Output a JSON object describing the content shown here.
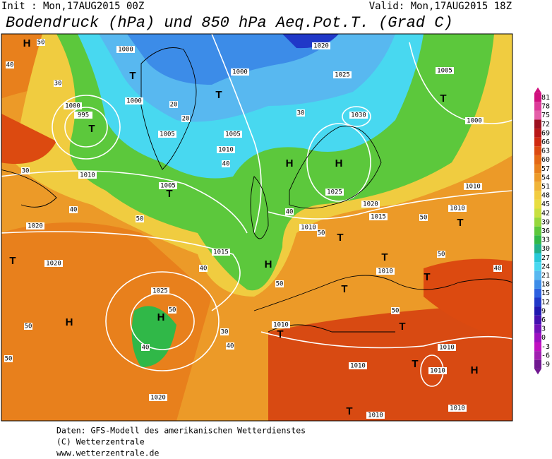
{
  "header": {
    "init": "Init : Mon,17AUG2015 00Z",
    "valid": "Valid: Mon,17AUG2015 18Z",
    "title": "Bodendruck (hPa) und 850 hPa Aeq.Pot.T. (Grad C)"
  },
  "colorbar": {
    "ticks": [
      81,
      78,
      75,
      72,
      69,
      66,
      63,
      60,
      57,
      54,
      51,
      48,
      45,
      42,
      39,
      36,
      33,
      30,
      27,
      24,
      21,
      18,
      15,
      12,
      9,
      6,
      3,
      0,
      -3,
      -6,
      -9
    ],
    "colors": [
      "#d0107e",
      "#dc3a98",
      "#e45ea8",
      "#9c1020",
      "#b81818",
      "#d02a10",
      "#dc4a10",
      "#e46814",
      "#e8801c",
      "#ec9a28",
      "#f0b438",
      "#f2cc40",
      "#e8de40",
      "#c8e040",
      "#96d83c",
      "#5cc83c",
      "#30b848",
      "#20b088",
      "#28c8d8",
      "#48d8f0",
      "#58b8f0",
      "#3c8ce8",
      "#2c60e0",
      "#2038c8",
      "#2018b0",
      "#4410b0",
      "#7010b8",
      "#9c10c0",
      "#c010c0",
      "#a020b0",
      "#701890"
    ]
  },
  "map": {
    "pressure_centers": [
      "H",
      "T",
      "T",
      "T",
      "T",
      "H",
      "H",
      "T",
      "T",
      "H",
      "H",
      "H",
      "T",
      "T",
      "T",
      "T",
      "T",
      "T",
      "T",
      "T",
      "T",
      "H"
    ],
    "isobar_labels": [
      1000,
      1000,
      1000,
      995,
      1000,
      1005,
      1005,
      1010,
      1020,
      1025,
      1030,
      1005,
      1000,
      1010,
      1005,
      1025,
      1020,
      1015,
      1010,
      1010,
      1010,
      1015,
      1020,
      1020,
      1025,
      1010,
      1010,
      1010,
      1010,
      1010,
      1010,
      1010,
      1020
    ],
    "temperature_labels": [
      50,
      40,
      30,
      20,
      20,
      30,
      40,
      50,
      40,
      50,
      30,
      40,
      50,
      50,
      40,
      50,
      50,
      40,
      50,
      50,
      40,
      50,
      30,
      40
    ]
  },
  "footer": {
    "source": "Daten: GFS-Modell des amerikanischen Wetterdienstes",
    "copyright": "(C) Wetterzentrale",
    "url": "www.wetterzentrale.de"
  }
}
